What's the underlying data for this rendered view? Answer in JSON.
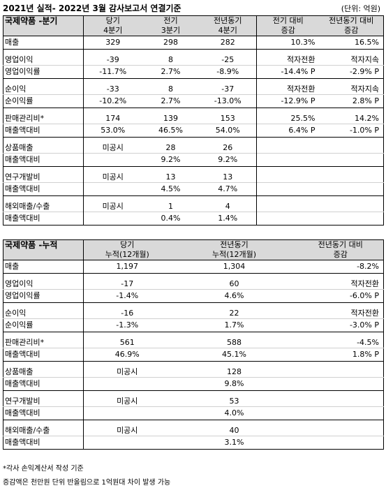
{
  "header": {
    "title": "2021년 실적- 2022년 3월 감사보고서 연결기준",
    "unit": "(단위: 억원)"
  },
  "quarterly": {
    "section": "국제약품 -분기",
    "columns": [
      [
        "당기",
        "4분기"
      ],
      [
        "전기",
        "3분기"
      ],
      [
        "전년동기",
        "4분기"
      ],
      [
        "전기 대비",
        "증감"
      ],
      [
        "전년동기 대비",
        "증감"
      ]
    ],
    "rows": [
      [
        "매출",
        "329",
        "298",
        "282",
        "10.3%",
        "16.5%"
      ],
      [
        "영업이익",
        "-39",
        "8",
        "-25",
        "적자전환",
        "적자지속"
      ],
      [
        " 영업이익률",
        "-11.7%",
        "2.7%",
        "-8.9%",
        "-14.4% P",
        "-2.9% P"
      ],
      [
        "순이익",
        "-33",
        "8",
        "-37",
        "적자전환",
        "적자지속"
      ],
      [
        " 순이익률",
        "-10.2%",
        "2.7%",
        "-13.0%",
        "-12.9% P",
        "2.8% P"
      ],
      [
        "판매관리비*",
        "174",
        "139",
        "153",
        "25.5%",
        "14.2%"
      ],
      [
        " 매출액대비",
        "53.0%",
        "46.5%",
        "54.0%",
        "6.4% P",
        "-1.0% P"
      ],
      [
        "상품매출",
        "미공시",
        "28",
        "26",
        "",
        ""
      ],
      [
        " 매출액대비",
        "",
        "9.2%",
        "9.2%",
        "",
        ""
      ],
      [
        "연구개발비",
        "미공시",
        "13",
        "13",
        "",
        ""
      ],
      [
        " 매출액대비",
        "",
        "4.5%",
        "4.7%",
        "",
        ""
      ],
      [
        "해외매출/수출",
        "미공시",
        "1",
        "4",
        "",
        ""
      ],
      [
        " 매출액대비",
        "",
        "0.4%",
        "1.4%",
        "",
        ""
      ]
    ]
  },
  "cumulative": {
    "section": "국제약품 -누적",
    "columns": [
      [
        "당기",
        "누적(12개월)"
      ],
      [
        "전년동기",
        "누적(12개월)"
      ],
      [
        "전년동기 대비",
        "증감"
      ]
    ],
    "rows": [
      [
        "매출",
        "1,197",
        "1,304",
        "-8.2%"
      ],
      [
        "영업이익",
        "-17",
        "60",
        "적자전환"
      ],
      [
        " 영업이익률",
        "-1.4%",
        "4.6%",
        "-6.0% P"
      ],
      [
        "순이익",
        "-16",
        "22",
        "적자전환"
      ],
      [
        " 순이익률",
        "-1.3%",
        "1.7%",
        "-3.0% P"
      ],
      [
        "판매관리비*",
        "561",
        "588",
        "-4.5%"
      ],
      [
        " 매출액대비",
        "46.9%",
        "45.1%",
        "1.8% P"
      ],
      [
        "상품매출",
        "미공시",
        "128",
        ""
      ],
      [
        " 매출액대비",
        "",
        "9.8%",
        ""
      ],
      [
        "연구개발비",
        "미공시",
        "53",
        ""
      ],
      [
        " 매출액대비",
        "",
        "4.0%",
        ""
      ],
      [
        "해외매출/수출",
        "미공시",
        "40",
        ""
      ],
      [
        " 매출액대비",
        "",
        "3.1%",
        ""
      ]
    ]
  },
  "footnotes": [
    "*각사 손익계산서 작성 기준",
    "증감액은 천만원 단위 반올림으로 1억원대 차이 발생 가능"
  ]
}
